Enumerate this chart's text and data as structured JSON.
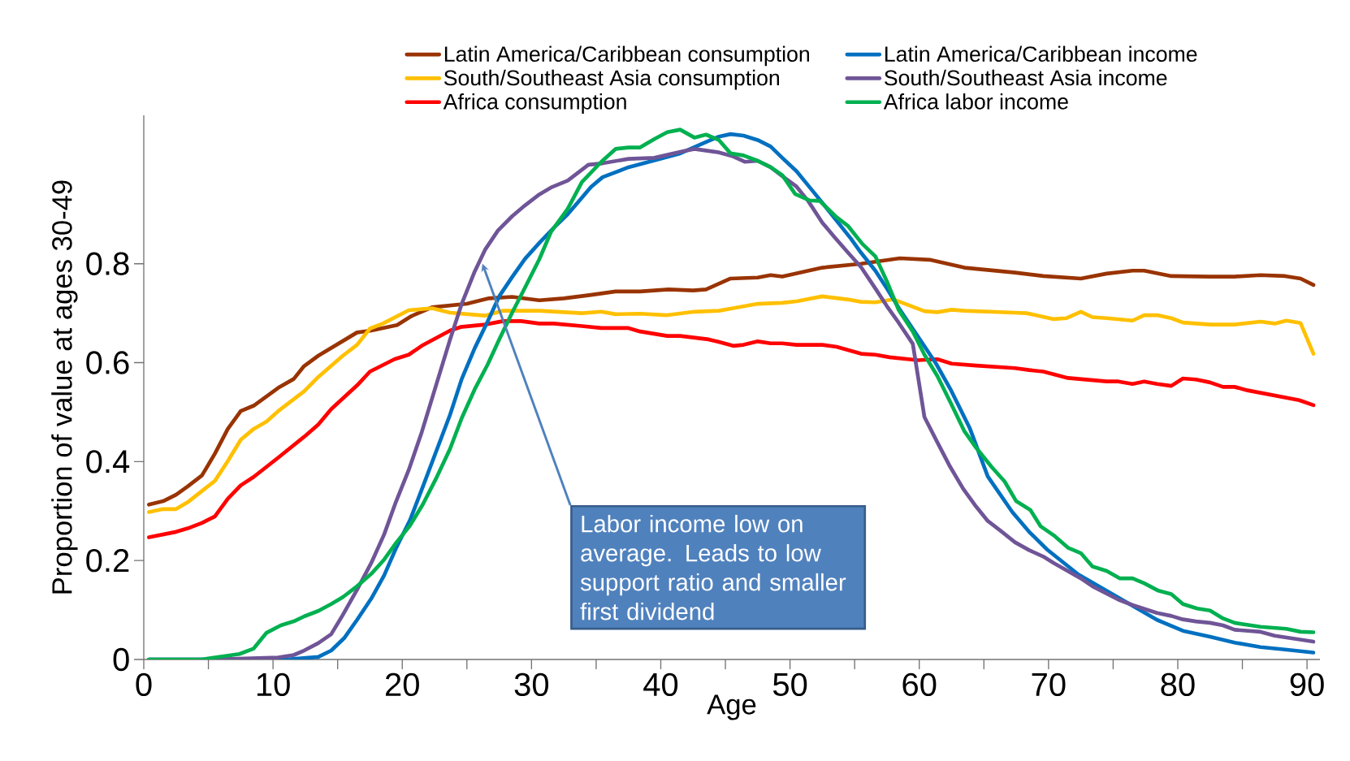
{
  "chart_data": {
    "type": "line",
    "xlabel": "Age",
    "ylabel": "Proportion of value at ages 30-49",
    "xlim": [
      0,
      91
    ],
    "ylim": [
      0,
      1.1
    ],
    "xticks": [
      0,
      {
        "value": 5,
        "label": null
      },
      10,
      {
        "value": 15,
        "label": null
      },
      20,
      {
        "value": 25,
        "label": null
      },
      30,
      {
        "value": 35,
        "label": null
      },
      40,
      {
        "value": 45,
        "label": null
      },
      50,
      {
        "value": 55,
        "label": null
      },
      60,
      {
        "value": 65,
        "label": null
      },
      70,
      {
        "value": 75,
        "label": null
      },
      80,
      {
        "value": 85,
        "label": null
      },
      90
    ],
    "yticks": [
      0,
      0.2,
      0.4,
      0.6,
      0.8
    ],
    "legend": "top",
    "marker": "none",
    "line_style": "solid",
    "annotations": [
      {
        "text": "Labor income low on average. Leads to low support ratio and smaller first dividend",
        "x": 26.2,
        "y": 0.8
      }
    ],
    "series": [
      {
        "name": "Latin America/Caribbean consumption",
        "color": "#993300",
        "x": [
          0.4,
          1.5,
          2.5,
          3.4,
          4.5,
          5.5,
          6.5,
          7.5,
          8.5,
          10.4,
          11.6,
          12.4,
          13.5,
          16.5,
          17.6,
          19.6,
          20.7,
          22.3,
          25,
          26.7,
          28.5,
          30.6,
          32.5,
          34.6,
          36.5,
          38.4,
          40.6,
          42.5,
          43.5,
          45.4,
          47.5,
          48.5,
          49.4,
          52.5,
          55.5,
          58.5,
          60.8,
          63.5,
          67.4,
          69.6,
          72.5,
          74.5,
          76.5,
          77.4,
          79.5,
          82.5,
          84.4,
          86.4,
          88.3,
          89.5,
          90.5
        ],
        "values": [
          0.313,
          0.32,
          0.333,
          0.35,
          0.372,
          0.416,
          0.466,
          0.502,
          0.513,
          0.549,
          0.567,
          0.593,
          0.614,
          0.661,
          0.665,
          0.676,
          0.694,
          0.712,
          0.719,
          0.73,
          0.733,
          0.726,
          0.73,
          0.737,
          0.744,
          0.744,
          0.748,
          0.746,
          0.748,
          0.77,
          0.772,
          0.777,
          0.774,
          0.792,
          0.8,
          0.811,
          0.808,
          0.792,
          0.782,
          0.775,
          0.77,
          0.78,
          0.786,
          0.786,
          0.775,
          0.774,
          0.774,
          0.777,
          0.775,
          0.77,
          0.757
        ]
      },
      {
        "name": "South/Southeast Asia consumption",
        "color": "#ffc000",
        "x": [
          0.4,
          1.5,
          2.5,
          3.4,
          5.5,
          6.5,
          7.5,
          8.5,
          9.5,
          10.4,
          12.4,
          13.5,
          15.4,
          16.5,
          17.5,
          18.5,
          20.5,
          22.3,
          23.7,
          26.4,
          27.8,
          30.6,
          33.9,
          35.4,
          36.5,
          38.4,
          40.5,
          42.6,
          44.5,
          45.6,
          47.5,
          49.4,
          50.5,
          52.5,
          54.4,
          55.5,
          56.6,
          58,
          60.4,
          61.4,
          62.5,
          63.5,
          67.4,
          68.3,
          70.4,
          71.4,
          72.5,
          73.4,
          74.5,
          76.5,
          77.4,
          78.4,
          79.5,
          80.4,
          82.5,
          84.4,
          86.4,
          87.5,
          88.4,
          89.5,
          90.5
        ],
        "values": [
          0.298,
          0.304,
          0.304,
          0.318,
          0.361,
          0.401,
          0.444,
          0.466,
          0.481,
          0.502,
          0.542,
          0.571,
          0.614,
          0.636,
          0.669,
          0.679,
          0.706,
          0.71,
          0.701,
          0.695,
          0.705,
          0.705,
          0.7,
          0.703,
          0.698,
          0.699,
          0.696,
          0.703,
          0.705,
          0.71,
          0.719,
          0.721,
          0.724,
          0.734,
          0.728,
          0.723,
          0.722,
          0.728,
          0.704,
          0.702,
          0.707,
          0.705,
          0.701,
          0.7,
          0.688,
          0.69,
          0.703,
          0.692,
          0.69,
          0.685,
          0.696,
          0.696,
          0.69,
          0.681,
          0.677,
          0.677,
          0.683,
          0.679,
          0.685,
          0.68,
          0.618
        ]
      },
      {
        "name": "Africa consumption",
        "color": "#ff0000",
        "x": [
          0.4,
          2.5,
          3.4,
          4.5,
          5.5,
          6.5,
          7.5,
          8.5,
          10.4,
          12.4,
          13.5,
          14.5,
          16.5,
          17.5,
          19.4,
          20.5,
          21.5,
          23.7,
          24.5,
          26.4,
          27.8,
          29.2,
          30.6,
          31.7,
          33.9,
          35.4,
          37.5,
          38.4,
          40.5,
          41.5,
          43.7,
          44.5,
          45.6,
          46.4,
          47.5,
          48.5,
          49.4,
          50.5,
          52.5,
          53.6,
          55.5,
          56.6,
          57.7,
          59.9,
          61.4,
          62.5,
          64.4,
          67.4,
          68.5,
          69.6,
          71.5,
          74.5,
          75.4,
          76.5,
          77.4,
          78.4,
          79.5,
          80.4,
          81.4,
          82.5,
          83.5,
          84.4,
          85.4,
          89.4,
          90.5
        ],
        "values": [
          0.247,
          0.258,
          0.265,
          0.276,
          0.289,
          0.325,
          0.352,
          0.369,
          0.408,
          0.45,
          0.475,
          0.506,
          0.554,
          0.582,
          0.607,
          0.616,
          0.634,
          0.665,
          0.672,
          0.677,
          0.684,
          0.684,
          0.679,
          0.679,
          0.674,
          0.67,
          0.67,
          0.663,
          0.654,
          0.654,
          0.647,
          0.642,
          0.634,
          0.636,
          0.643,
          0.639,
          0.639,
          0.636,
          0.636,
          0.632,
          0.618,
          0.616,
          0.611,
          0.605,
          0.607,
          0.598,
          0.594,
          0.589,
          0.585,
          0.582,
          0.569,
          0.562,
          0.562,
          0.557,
          0.562,
          0.557,
          0.553,
          0.568,
          0.566,
          0.56,
          0.551,
          0.551,
          0.544,
          0.524,
          0.514
        ]
      },
      {
        "name": "Latin America/Caribbean income",
        "color": "#0070c0",
        "x": [
          0.4,
          11,
          13.5,
          14.5,
          15.5,
          16.5,
          17.6,
          18.6,
          19.5,
          20.6,
          21.6,
          22.6,
          23.7,
          24.6,
          25.6,
          26.6,
          27.5,
          28.5,
          29.5,
          30.6,
          31.7,
          32.8,
          34.6,
          35.5,
          37.5,
          39.5,
          41.5,
          43.5,
          44.5,
          45.4,
          46.4,
          47.5,
          48.5,
          49.4,
          50.5,
          51.6,
          52.5,
          53.6,
          54.7,
          55.5,
          56.6,
          57.5,
          58.5,
          60.2,
          61.3,
          62.4,
          63.9,
          65.3,
          67.2,
          68.5,
          69.9,
          72.3,
          75.4,
          78.4,
          80.4,
          82.5,
          84.4,
          86.4,
          88.3,
          90.5
        ],
        "values": [
          0,
          0,
          0.005,
          0.018,
          0.043,
          0.08,
          0.123,
          0.17,
          0.224,
          0.282,
          0.35,
          0.419,
          0.495,
          0.567,
          0.629,
          0.683,
          0.734,
          0.773,
          0.81,
          0.842,
          0.872,
          0.9,
          0.955,
          0.975,
          0.995,
          1.009,
          1.023,
          1.046,
          1.057,
          1.062,
          1.059,
          1.05,
          1.037,
          1.014,
          0.987,
          0.952,
          0.923,
          0.887,
          0.851,
          0.822,
          0.786,
          0.75,
          0.707,
          0.641,
          0.598,
          0.547,
          0.468,
          0.37,
          0.298,
          0.258,
          0.222,
          0.172,
          0.125,
          0.08,
          0.058,
          0.046,
          0.034,
          0.025,
          0.02,
          0.014
        ]
      },
      {
        "name": "South/Southeast Asia income",
        "color": "#6f5597",
        "x": [
          0.4,
          5.2,
          10.4,
          11.6,
          12.4,
          13.5,
          14.5,
          15.4,
          16.5,
          17.6,
          18.6,
          19.5,
          20.5,
          21.5,
          22.6,
          23.7,
          24.6,
          25.6,
          26.4,
          27.4,
          28.5,
          29.5,
          30.6,
          31.5,
          32.8,
          34.4,
          35.5,
          37.5,
          39.5,
          41.5,
          42.6,
          44.5,
          45.6,
          46.5,
          47.5,
          48.5,
          49.4,
          50.5,
          51.4,
          52.5,
          53.4,
          54.5,
          55.5,
          56.6,
          57.5,
          58.4,
          59.5,
          60.4,
          61.4,
          62.4,
          63.4,
          64.4,
          65.3,
          66.3,
          67.4,
          68.5,
          69.6,
          70.4,
          72.5,
          73.4,
          75.4,
          76.5,
          78.4,
          79.5,
          80.4,
          81.4,
          82.5,
          83.5,
          84.4,
          86.4,
          87.5,
          90.5
        ],
        "values": [
          0,
          0,
          0.004,
          0.009,
          0.018,
          0.033,
          0.051,
          0.09,
          0.141,
          0.195,
          0.253,
          0.318,
          0.383,
          0.459,
          0.553,
          0.647,
          0.719,
          0.784,
          0.828,
          0.867,
          0.896,
          0.918,
          0.94,
          0.954,
          0.968,
          1.0,
          1.003,
          1.012,
          1.014,
          1.026,
          1.032,
          1.025,
          1.017,
          1.006,
          1.008,
          0.995,
          0.977,
          0.956,
          0.927,
          0.883,
          0.855,
          0.822,
          0.793,
          0.75,
          0.714,
          0.681,
          0.638,
          0.49,
          0.439,
          0.389,
          0.345,
          0.309,
          0.28,
          0.26,
          0.237,
          0.221,
          0.208,
          0.195,
          0.164,
          0.148,
          0.121,
          0.11,
          0.094,
          0.088,
          0.081,
          0.077,
          0.074,
          0.069,
          0.06,
          0.056,
          0.048,
          0.036
        ]
      },
      {
        "name": "Africa labor income",
        "color": "#00b050",
        "x": [
          0.4,
          4.5,
          6.3,
          7.4,
          8.5,
          9.5,
          10.6,
          11.6,
          12.4,
          13.5,
          14.5,
          15.4,
          16.5,
          17.6,
          18.6,
          19.5,
          20.6,
          21.6,
          22.6,
          23.7,
          24.6,
          25.6,
          26.6,
          27.5,
          28.5,
          29.5,
          30.6,
          31.5,
          32.8,
          33.9,
          35.4,
          36.5,
          37.5,
          38.4,
          39.5,
          40.5,
          41.5,
          42.6,
          43.5,
          44.5,
          45.4,
          46.4,
          47.5,
          48.5,
          49.4,
          50.4,
          51.5,
          52.3,
          53.6,
          54.5,
          55.6,
          56.6,
          57.5,
          58.4,
          59.5,
          60.4,
          61.4,
          62.5,
          63.5,
          64.4,
          65.6,
          66.6,
          67.5,
          68.6,
          69.4,
          70.4,
          71.5,
          72.5,
          73.4,
          74.5,
          75.5,
          76.5,
          77.4,
          78.5,
          79.5,
          80.4,
          81.5,
          82.5,
          83.5,
          84.4,
          86.4,
          88.4,
          89.5,
          90.5
        ],
        "values": [
          0,
          0,
          0.007,
          0.011,
          0.022,
          0.054,
          0.069,
          0.077,
          0.087,
          0.098,
          0.112,
          0.126,
          0.148,
          0.173,
          0.202,
          0.235,
          0.271,
          0.314,
          0.365,
          0.426,
          0.488,
          0.546,
          0.596,
          0.647,
          0.701,
          0.752,
          0.809,
          0.864,
          0.911,
          0.965,
          1.006,
          1.032,
          1.035,
          1.035,
          1.052,
          1.066,
          1.071,
          1.055,
          1.061,
          1.05,
          1.023,
          1.019,
          1.008,
          0.995,
          0.979,
          0.941,
          0.928,
          0.927,
          0.894,
          0.876,
          0.84,
          0.815,
          0.764,
          0.707,
          0.663,
          0.616,
          0.573,
          0.515,
          0.461,
          0.428,
          0.389,
          0.36,
          0.32,
          0.302,
          0.269,
          0.251,
          0.226,
          0.215,
          0.188,
          0.179,
          0.164,
          0.164,
          0.154,
          0.139,
          0.132,
          0.112,
          0.103,
          0.099,
          0.083,
          0.074,
          0.066,
          0.062,
          0.056,
          0.055
        ]
      }
    ]
  }
}
